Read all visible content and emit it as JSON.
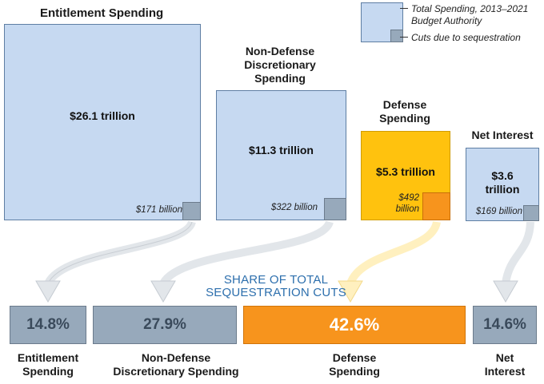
{
  "chart_data": {
    "type": "proportional-squares",
    "legend": {
      "total_label_line1": "Total Spending, 2013–2021",
      "total_label_line2": "Budget Authority",
      "cuts_label": "Cuts due to sequestration"
    },
    "categories": [
      {
        "name": "Entitlement Spending",
        "total": "$26.1 trillion",
        "total_trillions": 26.1,
        "cut": "$171 billion",
        "cut_billions": 171,
        "share": "14.8%",
        "share_value": 14.8
      },
      {
        "name": "Non-Defense Discretionary Spending",
        "total": "$11.3 trillion",
        "total_trillions": 11.3,
        "cut": "$322 billion",
        "cut_billions": 322,
        "share": "27.9%",
        "share_value": 27.9
      },
      {
        "name": "Defense Spending",
        "total": "$5.3 trillion",
        "total_trillions": 5.3,
        "cut": "$492 billion",
        "cut_billions": 492,
        "share": "42.6%",
        "share_value": 42.6
      },
      {
        "name": "Net Interest",
        "total": "$3.6 trillion",
        "total_trillions": 3.6,
        "cut": "$169 billion",
        "cut_billions": 169,
        "share": "14.6%",
        "share_value": 14.6
      }
    ],
    "top_labels": {
      "entitlement": "Entitlement Spending",
      "nondefense_l1": "Non-Defense",
      "nondefense_l2": "Discretionary",
      "nondefense_l3": "Spending",
      "defense_l1": "Defense",
      "defense_l2": "Spending",
      "interest": "Net Interest"
    },
    "square_text": {
      "entitlement_amount": "$26.1 trillion",
      "entitlement_cut": "$171 billion",
      "nondefense_amount": "$11.3 trillion",
      "nondefense_cut": "$322 billion",
      "defense_amount": "$5.3 trillion",
      "defense_cut_l1": "$492",
      "defense_cut_l2": "billion",
      "interest_amount_l1": "$3.6",
      "interest_amount_l2": "trillion",
      "interest_cut": "$169 billion"
    },
    "share_title_l1": "SHARE OF TOTAL",
    "share_title_l2": "SEQUESTRATION CUTS",
    "bottom_labels": {
      "entitlement_l1": "Entitlement",
      "entitlement_l2": "Spending",
      "nondefense_l1": "Non-Defense",
      "nondefense_l2": "Discretionary Spending",
      "defense_l1": "Defense",
      "defense_l2": "Spending",
      "interest_l1": "Net",
      "interest_l2": "Interest"
    },
    "colors": {
      "total_fill": "#c6d9f1",
      "cut_fill": "#97a9bb",
      "defense_fill": "#ffc20e",
      "defense_cut_fill": "#f7941d",
      "share_title": "#2d6fad"
    }
  }
}
